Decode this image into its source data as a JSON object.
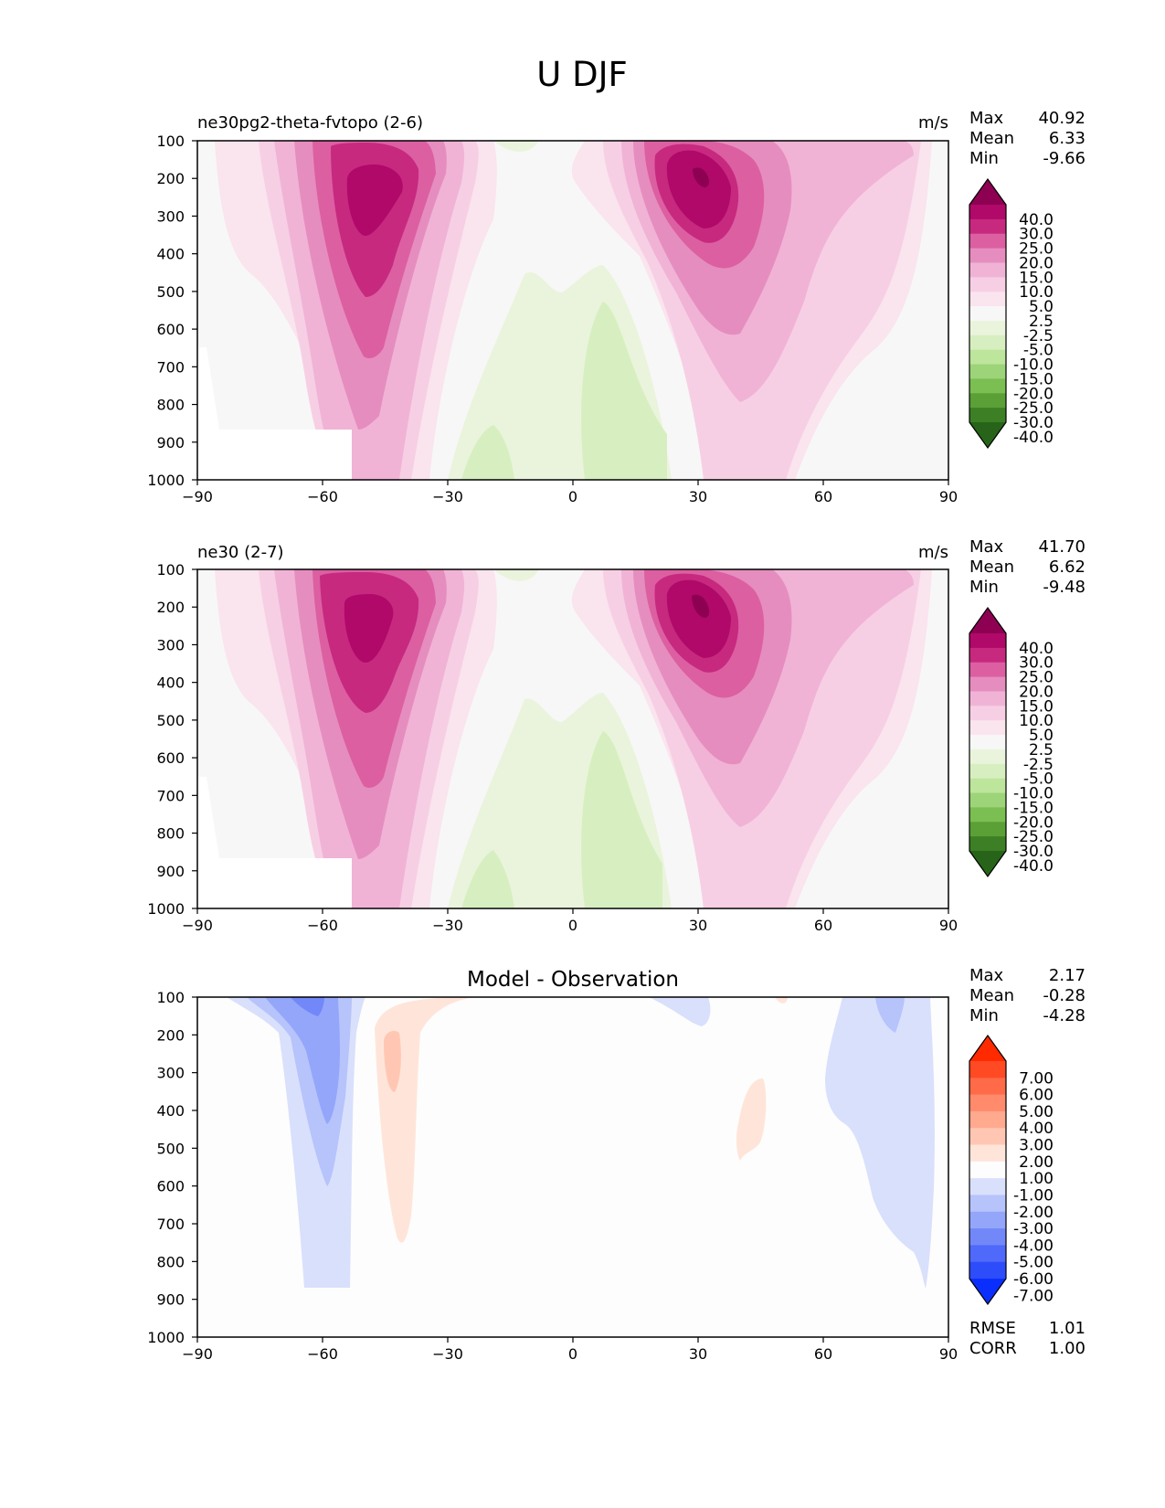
{
  "figure": {
    "title": "U DJF"
  },
  "chart_data": [
    {
      "type": "contour",
      "panel_title": "ne30pg2-theta-fvtopo (2-6)",
      "units": "m/s",
      "xlim": [
        -90,
        90
      ],
      "ylim": [
        1000,
        100
      ],
      "xticks": [
        "−90",
        "−60",
        "−30",
        "0",
        "30",
        "60",
        "90"
      ],
      "yticks": [
        "100",
        "200",
        "300",
        "400",
        "500",
        "600",
        "700",
        "800",
        "900",
        "1000"
      ],
      "stats": [
        {
          "label": "Max",
          "value": "40.92"
        },
        {
          "label": "Mean",
          "value": "6.33"
        },
        {
          "label": "Min",
          "value": "-9.66"
        }
      ],
      "colorbar": {
        "labels": [
          "40.0",
          "30.0",
          "25.0",
          "20.0",
          "15.0",
          "10.0",
          "5.0",
          "2.5",
          "-2.5",
          "-5.0",
          "-10.0",
          "-15.0",
          "-20.0",
          "-25.0",
          "-30.0",
          "-40.0"
        ],
        "colors": [
          "#8e0152",
          "#b0096a",
          "#c7297f",
          "#dc5fa2",
          "#e68dbf",
          "#f0b3d6",
          "#f7cfe4",
          "#fae4ee",
          "#f7f7f7",
          "#eaf4dc",
          "#d7efc0",
          "#bde59b",
          "#9dd479",
          "#7bbe51",
          "#5aa036",
          "#3c7f24",
          "#276419"
        ]
      },
      "features": [
        {
          "name": "southern-jet",
          "max_value": 35,
          "lat": -48,
          "plev": 250
        },
        {
          "name": "northern-jet",
          "max_value": 40.92,
          "lat": 30,
          "plev": 200
        },
        {
          "name": "tropical-easterlies",
          "min_value": -9.66,
          "lat": 8,
          "plev": 800
        }
      ]
    },
    {
      "type": "contour",
      "panel_title": "ne30 (2-7)",
      "units": "m/s",
      "xlim": [
        -90,
        90
      ],
      "ylim": [
        1000,
        100
      ],
      "xticks": [
        "−90",
        "−60",
        "−30",
        "0",
        "30",
        "60",
        "90"
      ],
      "yticks": [
        "100",
        "200",
        "300",
        "400",
        "500",
        "600",
        "700",
        "800",
        "900",
        "1000"
      ],
      "stats": [
        {
          "label": "Max",
          "value": "41.70"
        },
        {
          "label": "Mean",
          "value": "6.62"
        },
        {
          "label": "Min",
          "value": "-9.48"
        }
      ],
      "colorbar": {
        "labels": [
          "40.0",
          "30.0",
          "25.0",
          "20.0",
          "15.0",
          "10.0",
          "5.0",
          "2.5",
          "-2.5",
          "-5.0",
          "-10.0",
          "-15.0",
          "-20.0",
          "-25.0",
          "-30.0",
          "-40.0"
        ],
        "colors": [
          "#8e0152",
          "#b0096a",
          "#c7297f",
          "#dc5fa2",
          "#e68dbf",
          "#f0b3d6",
          "#f7cfe4",
          "#fae4ee",
          "#f7f7f7",
          "#eaf4dc",
          "#d7efc0",
          "#bde59b",
          "#9dd479",
          "#7bbe51",
          "#5aa036",
          "#3c7f24",
          "#276419"
        ]
      },
      "features": [
        {
          "name": "southern-jet",
          "max_value": 36,
          "lat": -48,
          "plev": 250
        },
        {
          "name": "northern-jet",
          "max_value": 41.7,
          "lat": 30,
          "plev": 200
        },
        {
          "name": "tropical-easterlies",
          "min_value": -9.48,
          "lat": 8,
          "plev": 800
        }
      ]
    },
    {
      "type": "contour",
      "panel_title": "Model - Observation",
      "units": "",
      "xlim": [
        -90,
        90
      ],
      "ylim": [
        1000,
        100
      ],
      "xticks": [
        "−90",
        "−60",
        "−30",
        "0",
        "30",
        "60",
        "90"
      ],
      "yticks": [
        "100",
        "200",
        "300",
        "400",
        "500",
        "600",
        "700",
        "800",
        "900",
        "1000"
      ],
      "stats": [
        {
          "label": "Max",
          "value": "2.17"
        },
        {
          "label": "Mean",
          "value": "-0.28"
        },
        {
          "label": "Min",
          "value": "-4.28"
        }
      ],
      "extra_stats": [
        {
          "label": "RMSE",
          "value": "1.01"
        },
        {
          "label": "CORR",
          "value": "1.00"
        }
      ],
      "colorbar": {
        "labels": [
          "7.00",
          "6.00",
          "5.00",
          "4.00",
          "3.00",
          "2.00",
          "1.00",
          "-1.00",
          "-2.00",
          "-3.00",
          "-4.00",
          "-5.00",
          "-6.00",
          "-7.00"
        ],
        "colors": [
          "#ff2a00",
          "#ff4a24",
          "#ff6a48",
          "#ff8a6c",
          "#ffa98f",
          "#ffc7b3",
          "#ffe5d9",
          "#fdfdfd",
          "#d9e0fc",
          "#b7c3fb",
          "#94a6fa",
          "#7288f9",
          "#4f6afa",
          "#2d4dfb",
          "#0a2ffc"
        ]
      },
      "features": [
        {
          "name": "southern-negative-bias",
          "min_value": -4.28,
          "lat": -60,
          "plev": 300
        },
        {
          "name": "southern-positive-bias",
          "max_value": 2.17,
          "lat": -44,
          "plev": 250
        },
        {
          "name": "northern-positive-bias",
          "max_value": 1.5,
          "lat": 43,
          "plev": 350
        },
        {
          "name": "northern-negative-bias",
          "min_value": -2,
          "lat": 78,
          "plev": 150
        }
      ]
    }
  ]
}
